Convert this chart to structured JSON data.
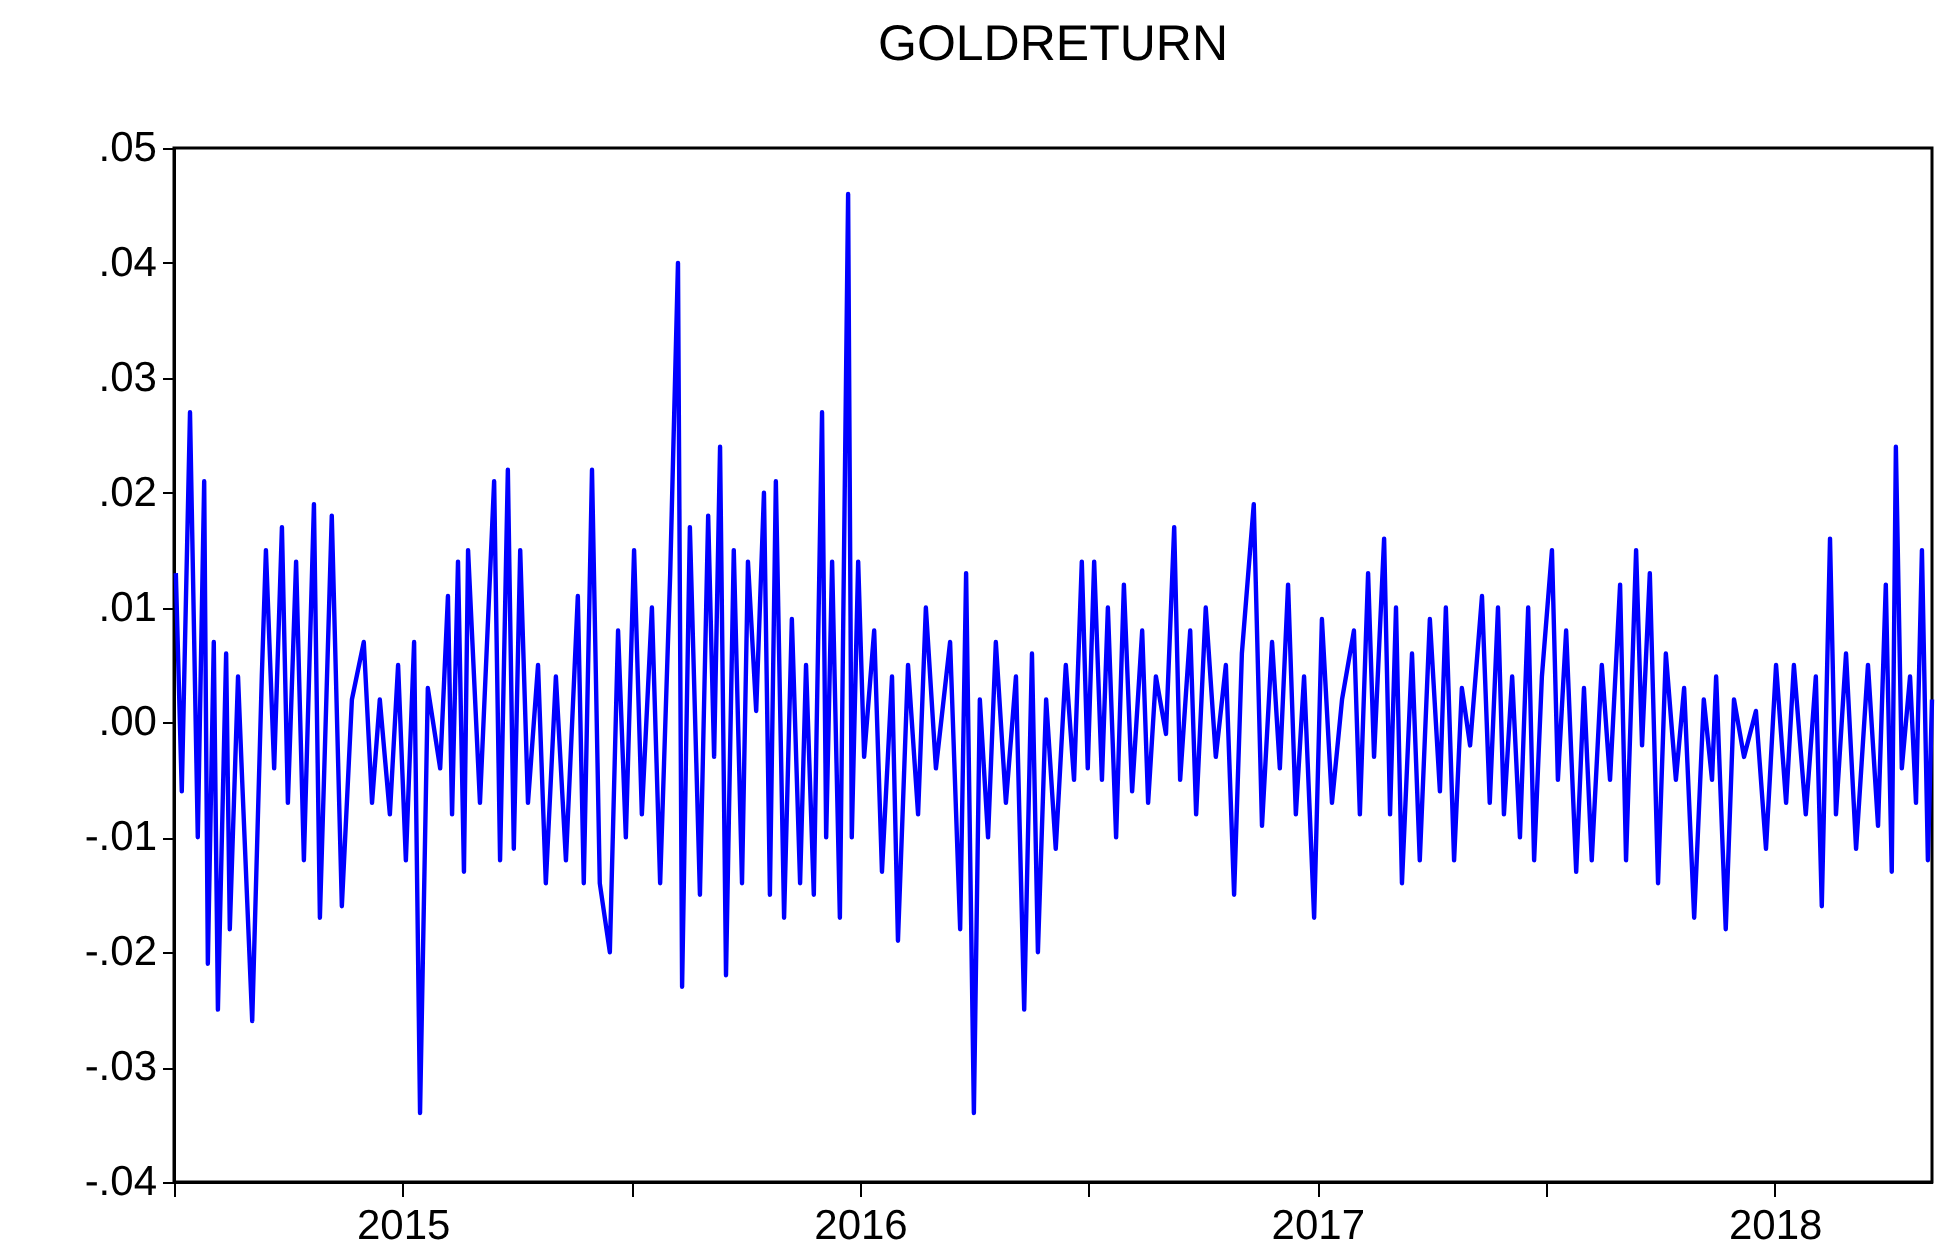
{
  "chart_data": {
    "type": "line",
    "title": "GOLDRETURN",
    "x": [
      2015.004,
      2015.017,
      2015.035,
      2015.052,
      2015.066,
      2015.074,
      2015.087,
      2015.096,
      2015.114,
      2015.122,
      2015.14,
      2015.149,
      2015.171,
      2015.192,
      2015.201,
      2015.219,
      2015.236,
      2015.249,
      2015.267,
      2015.284,
      2015.306,
      2015.319,
      2015.345,
      2015.367,
      2015.389,
      2015.415,
      2015.433,
      2015.45,
      2015.472,
      2015.49,
      2015.507,
      2015.525,
      2015.538,
      2015.555,
      2015.582,
      2015.599,
      2015.608,
      2015.621,
      2015.634,
      2015.643,
      2015.669,
      2015.7,
      2015.713,
      2015.73,
      2015.743,
      2015.757,
      2015.774,
      2015.796,
      2015.813,
      2015.835,
      2015.857,
      2015.883,
      2015.896,
      2015.914,
      2015.931,
      2015.953,
      2015.971,
      2015.988,
      2016.006,
      2016.023,
      2016.045,
      2016.063,
      2016.085,
      2016.102,
      2016.111,
      2016.128,
      2016.15,
      2016.168,
      2016.181,
      2016.194,
      2016.207,
      2016.224,
      2016.242,
      2016.255,
      2016.273,
      2016.29,
      2016.303,
      2016.316,
      2016.334,
      2016.351,
      2016.369,
      2016.382,
      2016.399,
      2016.417,
      2016.426,
      2016.439,
      2016.456,
      2016.474,
      2016.482,
      2016.496,
      2016.509,
      2016.531,
      2016.548,
      2016.57,
      2016.583,
      2016.605,
      2016.627,
      2016.644,
      2016.666,
      2016.697,
      2016.719,
      2016.732,
      2016.749,
      2016.762,
      2016.78,
      2016.797,
      2016.819,
      2016.841,
      2016.859,
      2016.876,
      2016.889,
      2016.907,
      2016.928,
      2016.95,
      2016.968,
      2016.985,
      2016.998,
      2017.012,
      2017.029,
      2017.042,
      2017.06,
      2017.077,
      2017.095,
      2017.117,
      2017.13,
      2017.147,
      2017.169,
      2017.187,
      2017.2,
      2017.222,
      2017.235,
      2017.256,
      2017.278,
      2017.3,
      2017.318,
      2017.335,
      2017.361,
      2017.379,
      2017.401,
      2017.418,
      2017.436,
      2017.453,
      2017.471,
      2017.493,
      2017.51,
      2017.532,
      2017.554,
      2017.58,
      2017.593,
      2017.611,
      2017.624,
      2017.646,
      2017.659,
      2017.672,
      2017.685,
      2017.707,
      2017.724,
      2017.746,
      2017.768,
      2017.781,
      2017.799,
      2017.816,
      2017.834,
      2017.86,
      2017.877,
      2017.895,
      2017.908,
      2017.926,
      2017.943,
      2017.961,
      2017.974,
      2017.991,
      2018.013,
      2018.026,
      2018.044,
      2018.066,
      2018.083,
      2018.1,
      2018.122,
      2018.14,
      2018.162,
      2018.175,
      2018.197,
      2018.21,
      2018.227,
      2018.245,
      2018.262,
      2018.284,
      2018.302,
      2018.324,
      2018.345,
      2018.363,
      2018.372,
      2018.393,
      2018.411,
      2018.433,
      2018.459,
      2018.481,
      2018.503,
      2018.525,
      2018.542,
      2018.568,
      2018.59,
      2018.603,
      2018.621,
      2018.634,
      2018.656,
      2018.678,
      2018.704,
      2018.726,
      2018.743,
      2018.756,
      2018.765,
      2018.778,
      2018.796,
      2018.809,
      2018.822,
      2018.835,
      2018.844
    ],
    "series": [
      {
        "color": "#0000ff",
        "values": [
          0.013,
          -0.006,
          0.027,
          -0.01,
          0.021,
          -0.021,
          0.007,
          -0.025,
          0.006,
          -0.018,
          0.004,
          -0.005,
          -0.026,
          0.004,
          0.015,
          -0.004,
          0.017,
          -0.007,
          0.014,
          -0.012,
          0.019,
          -0.017,
          0.018,
          -0.016,
          0.002,
          0.007,
          -0.007,
          0.002,
          -0.008,
          0.005,
          -0.012,
          0.007,
          -0.034,
          0.003,
          -0.004,
          0.011,
          -0.008,
          0.014,
          -0.013,
          0.015,
          -0.007,
          0.021,
          -0.012,
          0.022,
          -0.011,
          0.015,
          -0.007,
          0.005,
          -0.014,
          0.004,
          -0.012,
          0.011,
          -0.014,
          0.022,
          -0.014,
          -0.02,
          0.008,
          -0.01,
          0.015,
          -0.008,
          0.01,
          -0.014,
          0.013,
          0.04,
          -0.023,
          0.017,
          -0.015,
          0.018,
          -0.003,
          0.024,
          -0.022,
          0.015,
          -0.014,
          0.014,
          0.001,
          0.02,
          -0.015,
          0.021,
          -0.017,
          0.009,
          -0.014,
          0.005,
          -0.015,
          0.027,
          -0.01,
          0.014,
          -0.017,
          0.046,
          -0.01,
          0.014,
          -0.003,
          0.008,
          -0.013,
          0.004,
          -0.019,
          0.005,
          -0.008,
          0.01,
          -0.004,
          0.007,
          -0.018,
          0.013,
          -0.034,
          0.002,
          -0.01,
          0.007,
          -0.007,
          0.004,
          -0.025,
          0.006,
          -0.02,
          0.002,
          -0.011,
          0.005,
          -0.005,
          0.014,
          -0.004,
          0.014,
          -0.005,
          0.01,
          -0.01,
          0.012,
          -0.006,
          0.008,
          -0.007,
          0.004,
          -0.001,
          0.017,
          -0.005,
          0.008,
          -0.008,
          0.01,
          -0.003,
          0.005,
          -0.015,
          0.006,
          0.019,
          -0.009,
          0.007,
          -0.004,
          0.012,
          -0.008,
          0.004,
          -0.017,
          0.009,
          -0.007,
          0.002,
          0.008,
          -0.008,
          0.013,
          -0.003,
          0.016,
          -0.008,
          0.01,
          -0.014,
          0.006,
          -0.012,
          0.009,
          -0.006,
          0.01,
          -0.012,
          0.003,
          -0.002,
          0.011,
          -0.007,
          0.01,
          -0.008,
          0.004,
          -0.01,
          0.01,
          -0.012,
          0.004,
          0.015,
          -0.005,
          0.008,
          -0.013,
          0.003,
          -0.012,
          0.005,
          -0.005,
          0.012,
          -0.012,
          0.015,
          -0.002,
          0.013,
          -0.014,
          0.006,
          -0.005,
          0.003,
          -0.017,
          0.002,
          -0.005,
          0.004,
          -0.018,
          0.002,
          -0.003,
          0.001,
          -0.011,
          0.005,
          -0.007,
          0.005,
          -0.008,
          0.004,
          -0.016,
          0.016,
          -0.008,
          0.006,
          -0.011,
          0.005,
          -0.009,
          0.012,
          -0.013,
          0.024,
          -0.004,
          0.004,
          -0.007,
          0.015,
          -0.012,
          0.002
        ]
      }
    ],
    "xlim": [
      2015,
      2018.844
    ],
    "xticks": [
      {
        "value": 2015,
        "label": null
      },
      {
        "value": 2015.5,
        "label": "2015"
      },
      {
        "value": 2016,
        "label": null
      },
      {
        "value": 2016.5,
        "label": "2016"
      },
      {
        "value": 2017,
        "label": null
      },
      {
        "value": 2017.5,
        "label": "2017"
      },
      {
        "value": 2018,
        "label": null
      },
      {
        "value": 2018.5,
        "label": "2018"
      }
    ],
    "ylim": [
      -0.04,
      0.05
    ],
    "yticks": [
      {
        "value": -0.04,
        "label": "-.04"
      },
      {
        "value": -0.03,
        "label": "-.03"
      },
      {
        "value": -0.02,
        "label": "-.02"
      },
      {
        "value": -0.01,
        "label": "-.01"
      },
      {
        "value": 0,
        "label": ".00"
      },
      {
        "value": 0.01,
        "label": ".01"
      },
      {
        "value": 0.02,
        "label": ".02"
      },
      {
        "value": 0.03,
        "label": ".03"
      },
      {
        "value": 0.04,
        "label": ".04"
      },
      {
        "value": 0.05,
        "label": ".05"
      }
    ],
    "grid": false,
    "marker": "none",
    "line_style": "solid"
  }
}
